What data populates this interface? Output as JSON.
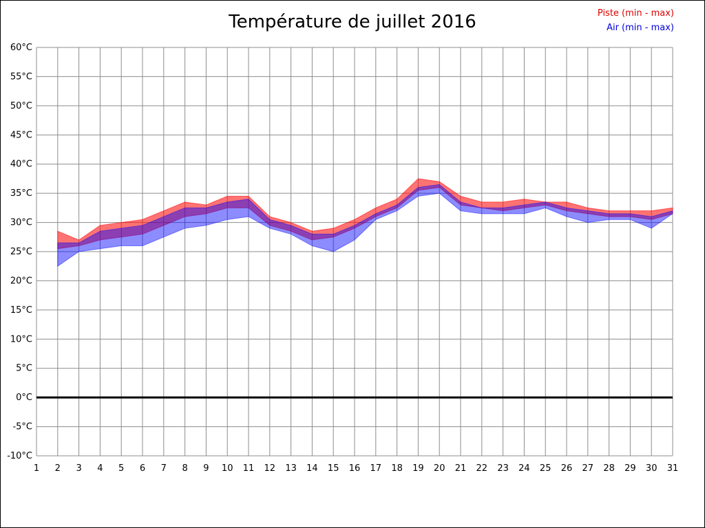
{
  "chart_data": {
    "type": "area",
    "title": "Température de juillet 2016",
    "legend": [
      {
        "label": "Piste (min - max)",
        "color": "#dd0000"
      },
      {
        "label": "Air (min - max)",
        "color": "#0000dd"
      }
    ],
    "xlim": [
      1,
      31
    ],
    "ylim": [
      -10,
      60
    ],
    "grid": true,
    "grid_color": "#8c8c8c",
    "zero_line": {
      "value": 0,
      "color": "#000000",
      "width": 3
    },
    "ytick_values": [
      60,
      55,
      50,
      45,
      40,
      35,
      30,
      25,
      20,
      15,
      10,
      5,
      0,
      -5,
      -10
    ],
    "ytick_labels": [
      "60°C",
      "55°C",
      "50°C",
      "45°C",
      "40°C",
      "35°C",
      "30°C",
      "25°C",
      "20°C",
      "15°C",
      "10°C",
      "5°C",
      "0°C",
      "-5°C",
      "-10°C"
    ],
    "xtick_labels": [
      "1",
      "2",
      "3",
      "4",
      "5",
      "6",
      "7",
      "8",
      "9",
      "10",
      "11",
      "12",
      "13",
      "14",
      "15",
      "16",
      "17",
      "18",
      "19",
      "20",
      "21",
      "22",
      "23",
      "24",
      "25",
      "26",
      "27",
      "28",
      "29",
      "30",
      "31"
    ],
    "days": [
      2,
      3,
      4,
      5,
      6,
      7,
      8,
      9,
      10,
      11,
      12,
      13,
      14,
      15,
      16,
      17,
      18,
      19,
      20,
      21,
      22,
      23,
      24,
      25,
      26,
      27,
      28,
      29,
      30,
      31
    ],
    "series": [
      {
        "name": "Piste",
        "color": "#ff0000",
        "fill": "rgba(255,0,0,0.55)",
        "max": [
          28.5,
          27.0,
          29.5,
          30.0,
          30.5,
          32.0,
          33.5,
          33.0,
          34.5,
          34.5,
          31.0,
          30.0,
          28.5,
          29.0,
          30.5,
          32.5,
          34.0,
          37.5,
          37.0,
          34.5,
          33.5,
          33.5,
          34.0,
          33.5,
          33.5,
          32.5,
          32.0,
          32.0,
          32.0,
          32.5
        ],
        "min": [
          25.5,
          26.0,
          27.0,
          27.5,
          28.0,
          29.5,
          31.0,
          31.5,
          32.5,
          32.5,
          29.5,
          28.5,
          27.0,
          27.5,
          29.0,
          31.0,
          32.5,
          35.5,
          36.0,
          33.0,
          32.5,
          32.0,
          32.5,
          33.0,
          32.0,
          31.5,
          31.0,
          31.0,
          30.5,
          31.5
        ]
      },
      {
        "name": "Air",
        "color": "#0000ff",
        "fill": "rgba(0,0,255,0.45)",
        "max": [
          26.5,
          26.5,
          28.5,
          29.0,
          29.5,
          31.0,
          32.5,
          32.5,
          33.5,
          34.0,
          30.5,
          29.5,
          28.0,
          28.0,
          29.5,
          31.5,
          33.0,
          36.0,
          36.5,
          33.5,
          32.5,
          32.5,
          33.0,
          33.5,
          32.5,
          32.0,
          31.5,
          31.5,
          31.0,
          32.0
        ],
        "min": [
          22.5,
          25.0,
          25.5,
          26.0,
          26.0,
          27.5,
          29.0,
          29.5,
          30.5,
          31.0,
          29.0,
          28.0,
          26.0,
          25.0,
          27.0,
          30.5,
          32.0,
          34.5,
          35.0,
          32.0,
          31.5,
          31.5,
          31.5,
          32.5,
          31.0,
          30.0,
          30.5,
          30.5,
          29.0,
          31.5
        ]
      }
    ]
  }
}
